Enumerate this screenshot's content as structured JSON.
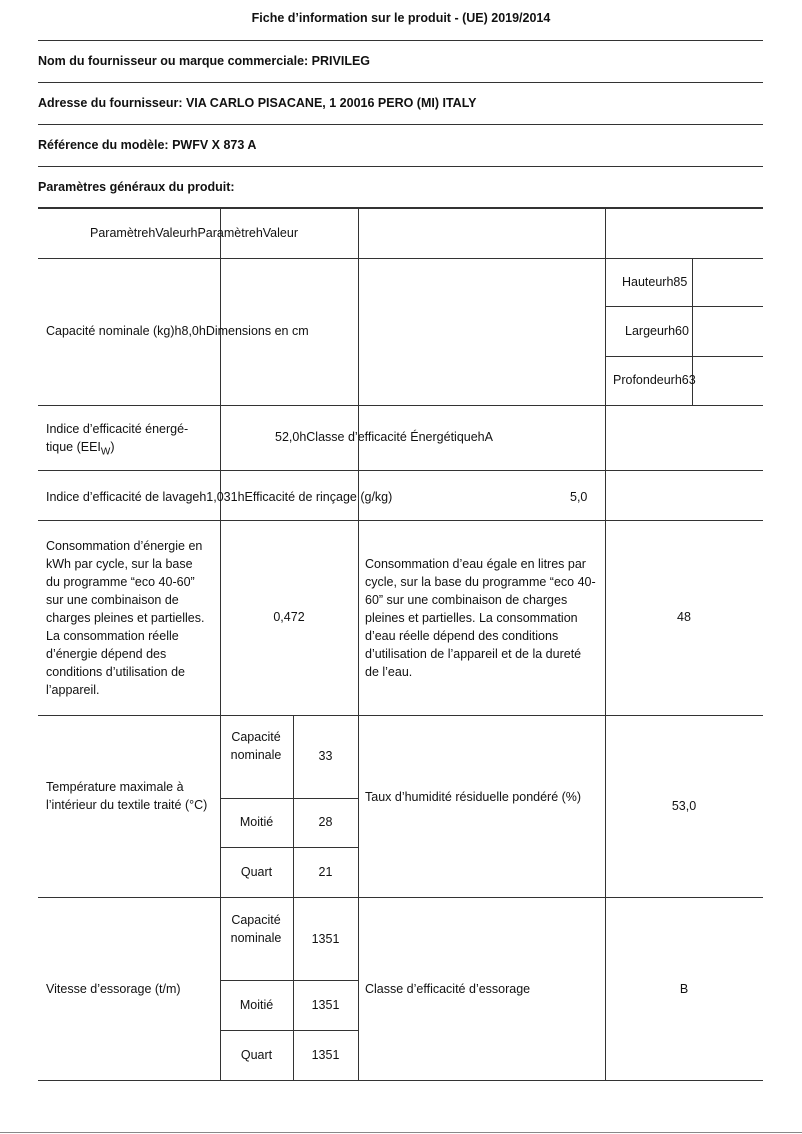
{
  "title": "Fiche d’information sur le produit - (UE) 2019/2014",
  "header": {
    "supplier": "Nom du fournisseur ou marque commerciale: PRIVILEG",
    "address": "Adresse du fournisseur: VIA CARLO PISACANE, 1 20016 PERO (MI) ITALY",
    "model": "Référence du modèle: PWFV X 873 A",
    "general": "Paramètres généraux du produit:"
  },
  "table": {
    "head": "ParamètrehValeurhParamètrehValeur",
    "capacity": "Capacité nominale (kg)h8,0hDimensions en cm",
    "height": "Hauteurh85",
    "width": "Largeurh60",
    "depth": "Profondeurh63",
    "eei_label": "Indice d’efficacité énergé-tique (EEI",
    "eei_sub": "W",
    "eei_close": ")",
    "eei_value": "52,0hClasse d’efficacité ÉnergétiquehA",
    "wash": "Indice d’efficacité de lavageh1,031hEfficacité de rinçage (g/kg)",
    "rinse_value": "5,0",
    "energy_label": "Consommation d’énergie en kWh par cycle, sur la base du programme “eco 40-60” sur une combinaison de charges pleines et partielles. La consommation réelle d’énergie dépend des conditions d’utilisation de l’appareil.",
    "energy_value": "0,472",
    "water_label": "Consommation d’eau égale en litres par cycle, sur la base du programme “eco 40-60” sur une combinaison de charges pleines et partielles. La consommation d’eau réelle dépend des conditions d’utilisation de l’appareil et de la dureté de l’eau.",
    "water_value": "48",
    "temp_label": "Température maximale à l’intérieur du textile traité (°C)",
    "temp": [
      {
        "load": "Capacité nominale",
        "value": "33"
      },
      {
        "load": "Moitié",
        "value": "28"
      },
      {
        "load": "Quart",
        "value": "21"
      }
    ],
    "humidity_label": "Taux d’humidité résiduelle pondéré (%)",
    "humidity_value": "53,0",
    "spin_label": "Vitesse d’essorage (t/m)",
    "spin": [
      {
        "load": "Capacité nominale",
        "value": "1351"
      },
      {
        "load": "Moitié",
        "value": "1351"
      },
      {
        "load": "Quart",
        "value": "1351"
      }
    ],
    "spin_class_label": "Classe d’efficacité d’essorage",
    "spin_class_value": "B"
  }
}
